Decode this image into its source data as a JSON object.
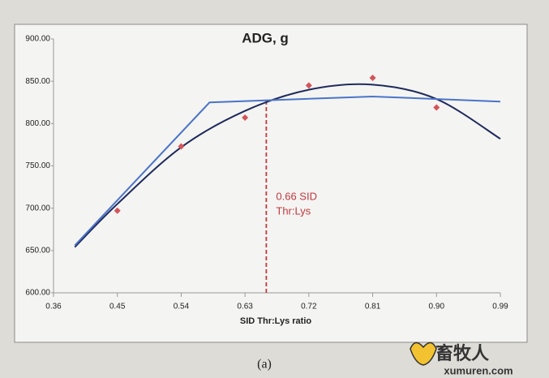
{
  "chart_data": {
    "type": "scatter",
    "title": "ADG, g",
    "x_label": "SID Thr:Lys ratio",
    "xlim": [
      0.36,
      0.99
    ],
    "xticks": [
      0.36,
      0.45,
      0.54,
      0.63,
      0.72,
      0.81,
      0.9,
      0.99
    ],
    "xtick_labels": [
      "0.36",
      "0.45",
      "0.54",
      "0.63",
      "0.72",
      "0.81",
      "0.90",
      "0.99"
    ],
    "ylim": [
      600,
      900
    ],
    "yticks": [
      {
        "value": 600,
        "label": "600.00"
      },
      {
        "value": 650,
        "label": "650.00"
      },
      {
        "value": 700,
        "label": "700.00"
      },
      {
        "value": 750,
        "label": "750.00"
      },
      {
        "value": 800,
        "label": "800.00"
      },
      {
        "value": 850,
        "label": "850.00"
      },
      {
        "value": 900,
        "label": "900.00"
      }
    ],
    "grid": false,
    "series": [
      {
        "mode": "markers",
        "color": "#d2555a",
        "x": [
          0.45,
          0.54,
          0.63,
          0.72,
          0.81,
          0.9
        ],
        "values": [
          697,
          773,
          807,
          845,
          854,
          819
        ]
      },
      {
        "mode": "line",
        "color": "#1f2a5c",
        "x": [
          0.39,
          0.45,
          0.54,
          0.63,
          0.72,
          0.81,
          0.9,
          0.99
        ],
        "values": [
          654,
          705,
          772,
          815,
          840,
          846,
          829,
          782
        ]
      },
      {
        "mode": "line",
        "color": "#4a74c8",
        "x": [
          0.39,
          0.58,
          0.81,
          0.99
        ],
        "values": [
          656,
          825,
          832,
          826
        ]
      }
    ],
    "reference_line": {
      "x": 0.66,
      "top": 828,
      "color": "#c0393f"
    },
    "annotation": [
      "0.66 SID",
      "Thr:Lys"
    ]
  },
  "caption": "(a)",
  "watermark": {
    "name": "畜牧人",
    "url": "xumuren.com"
  }
}
